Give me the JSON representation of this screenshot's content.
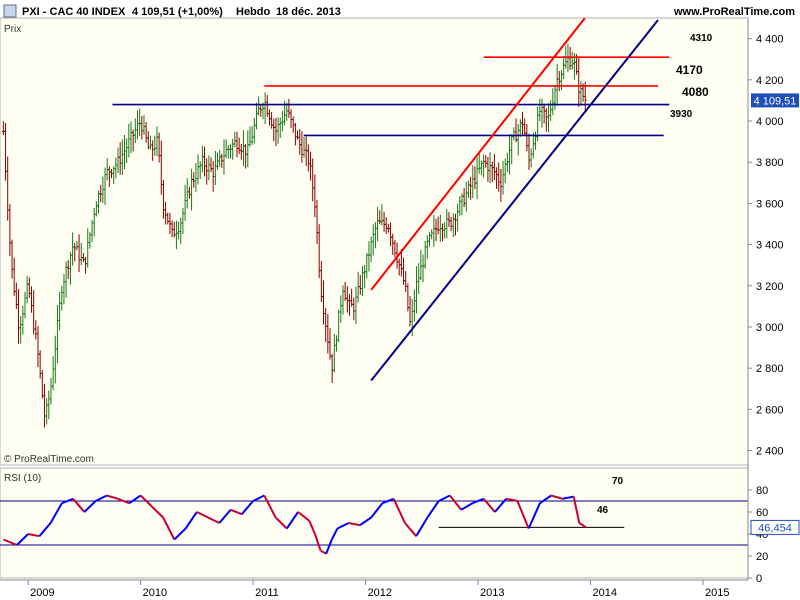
{
  "header": {
    "symbol": "PXI - CAC 40 INDEX",
    "last": "4 109,51 (+1,00%)",
    "period": "Hebdo",
    "date": "18 déc. 2013",
    "site": "www.ProRealTime.com"
  },
  "price_panel": {
    "label": "Prix",
    "watermark": "© ProRealTime.com",
    "current_value": "4 109,51",
    "y_ticks": [
      "4 400",
      "4 200",
      "4 000",
      "3 800",
      "3 600",
      "3 400",
      "3 200",
      "3 000",
      "2 800",
      "2 600",
      "2 400"
    ],
    "level_labels": [
      "4310",
      "4170",
      "4080",
      "3930"
    ]
  },
  "rsi_panel": {
    "label": "RSI (10)",
    "current_value": "46,454",
    "y_ticks": [
      "80",
      "60",
      "40",
      "20",
      "0"
    ],
    "level_labels": [
      "70",
      "46"
    ]
  },
  "x_axis": {
    "ticks": [
      "2009",
      "2010",
      "2011",
      "2012",
      "2013",
      "2014",
      "2015"
    ]
  },
  "colors": {
    "up_bar": "#1a7a1a",
    "down_bar": "#8b0000",
    "support": "#00008b",
    "resistance": "#ff0000",
    "current_box": "#1f4fb8",
    "rsi_up": "#0000ff",
    "rsi_down": "#cc0033"
  },
  "chart_data": [
    {
      "type": "line",
      "title": "PXI - CAC 40 INDEX",
      "subtitle": "Hebdo 18 déc. 2013",
      "xlabel": "",
      "ylabel": "Prix",
      "xlim": [
        2008.75,
        2015.4
      ],
      "ylim": [
        2330,
        4500
      ],
      "series": [
        {
          "name": "",
          "x": [
            2008.78,
            2008.85,
            2008.92,
            2009.0,
            2009.08,
            2009.15,
            2009.2,
            2009.25,
            2009.3,
            2009.4,
            2009.5,
            2009.6,
            2009.7,
            2009.8,
            2009.9,
            2010.0,
            2010.08,
            2010.15,
            2010.2,
            2010.28,
            2010.35,
            2010.45,
            2010.55,
            2010.65,
            2010.75,
            2010.85,
            2010.95,
            2011.05,
            2011.1,
            2011.2,
            2011.3,
            2011.4,
            2011.5,
            2011.55,
            2011.6,
            2011.65,
            2011.7,
            2011.75,
            2011.8,
            2011.85,
            2011.9,
            2011.95,
            2012.0,
            2012.1,
            2012.2,
            2012.3,
            2012.35,
            2012.4,
            2012.45,
            2012.55,
            2012.65,
            2012.75,
            2012.85,
            2012.95,
            2013.05,
            2013.15,
            2013.2,
            2013.3,
            2013.4,
            2013.45,
            2013.55,
            2013.62,
            2013.7,
            2013.75,
            2013.8,
            2013.85,
            2013.9,
            2013.96
          ],
          "y": [
            3950,
            3300,
            3000,
            3200,
            2900,
            2550,
            2700,
            2950,
            3200,
            3400,
            3300,
            3600,
            3750,
            3800,
            3900,
            4000,
            3850,
            3900,
            3600,
            3450,
            3500,
            3700,
            3800,
            3750,
            3850,
            3900,
            3850,
            4050,
            4100,
            3950,
            4050,
            3900,
            3800,
            3600,
            3200,
            3000,
            2800,
            3000,
            3200,
            3100,
            3100,
            3200,
            3300,
            3500,
            3500,
            3300,
            3200,
            3000,
            3200,
            3400,
            3500,
            3500,
            3600,
            3700,
            3800,
            3750,
            3700,
            3900,
            4000,
            3800,
            4050,
            4000,
            4200,
            4250,
            4300,
            4290,
            4150,
            4100
          ]
        }
      ],
      "horizontal_levels": [
        4310,
        4170,
        4080,
        3930
      ],
      "trendlines": [
        {
          "color": "red",
          "from": [
            2012.05,
            3180
          ],
          "to": [
            2013.95,
            4500
          ]
        },
        {
          "color": "navy",
          "from": [
            2012.05,
            2740
          ],
          "to": [
            2014.6,
            4490
          ]
        }
      ]
    },
    {
      "type": "line",
      "title": "RSI (10)",
      "xlabel": "",
      "ylabel": "",
      "xlim": [
        2008.75,
        2015.4
      ],
      "ylim": [
        0,
        100
      ],
      "series": [
        {
          "name": "RSI (10)",
          "x": [
            2008.78,
            2008.9,
            2009.0,
            2009.1,
            2009.2,
            2009.3,
            2009.4,
            2009.5,
            2009.6,
            2009.7,
            2009.8,
            2009.9,
            2010.0,
            2010.1,
            2010.2,
            2010.3,
            2010.4,
            2010.5,
            2010.6,
            2010.7,
            2010.8,
            2010.9,
            2011.0,
            2011.1,
            2011.2,
            2011.3,
            2011.4,
            2011.5,
            2011.55,
            2011.6,
            2011.65,
            2011.7,
            2011.75,
            2011.85,
            2011.95,
            2012.05,
            2012.15,
            2012.25,
            2012.35,
            2012.45,
            2012.55,
            2012.65,
            2012.75,
            2012.85,
            2012.95,
            2013.05,
            2013.15,
            2013.25,
            2013.35,
            2013.45,
            2013.55,
            2013.65,
            2013.75,
            2013.85,
            2013.9,
            2013.96
          ],
          "y": [
            35,
            30,
            40,
            38,
            50,
            68,
            72,
            60,
            70,
            75,
            72,
            68,
            75,
            65,
            55,
            35,
            45,
            60,
            55,
            50,
            62,
            58,
            70,
            75,
            55,
            45,
            60,
            52,
            40,
            25,
            22,
            35,
            45,
            50,
            48,
            55,
            68,
            72,
            50,
            38,
            55,
            70,
            75,
            62,
            68,
            72,
            60,
            72,
            70,
            45,
            68,
            75,
            72,
            74,
            50,
            46
          ]
        }
      ],
      "horizontal_levels": [
        70,
        46,
        30
      ]
    }
  ]
}
